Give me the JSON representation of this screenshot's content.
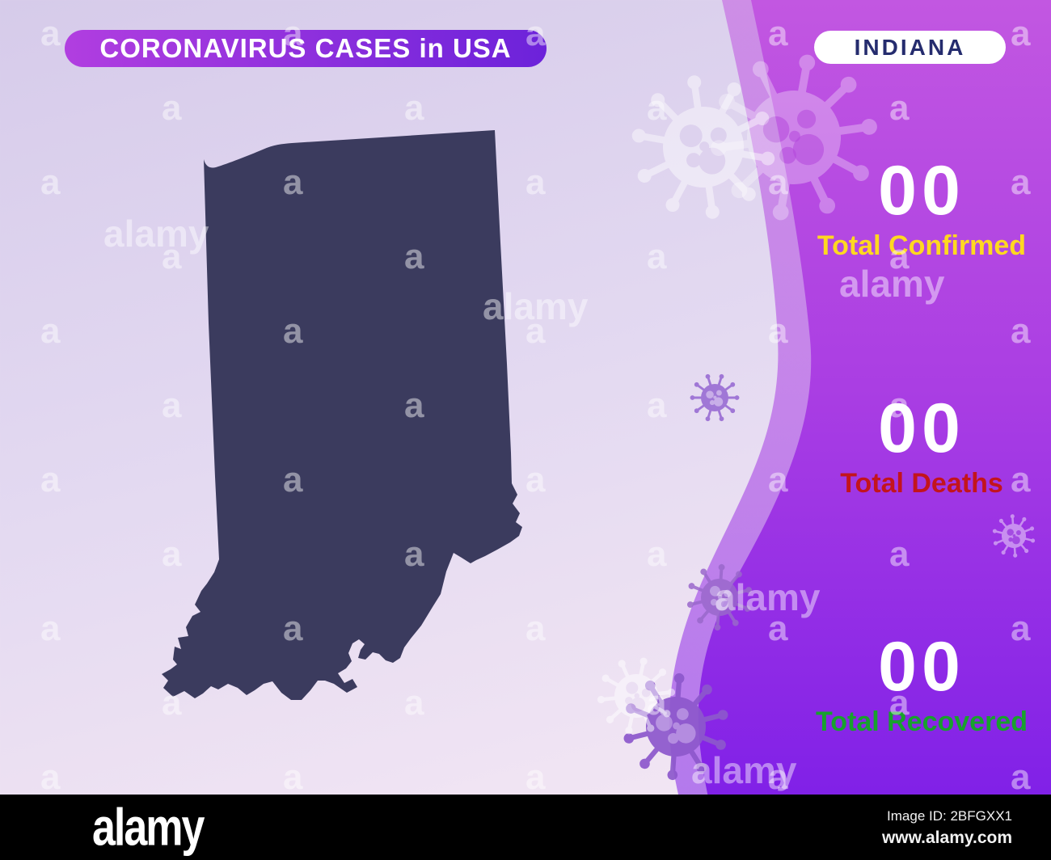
{
  "title_badge": {
    "label": "CORONAVIRUS CASES in USA"
  },
  "state_badge": {
    "label": "INDIANA"
  },
  "stats": [
    {
      "value": "00",
      "label": "Total Confirmed",
      "color": "#ffd820"
    },
    {
      "value": "00",
      "label": "Total Deaths",
      "color": "#c3141d"
    },
    {
      "value": "00",
      "label": "Total Recovered",
      "color": "#18a12d"
    }
  ],
  "map": {
    "state": "Indiana",
    "fill": "#3b3b5e"
  },
  "decor": {
    "virus_icon": "coronavirus-icon"
  },
  "colors": {
    "bg_top": "#d6cbea",
    "bg_bottom": "#f6eaf4",
    "wave_top": "#c257e1",
    "wave_mid": "#aa3ee3",
    "wave_bottom": "#7a1ce8",
    "badge_grad_left": "#b13ee0",
    "badge_grad_right": "#6c22da",
    "state_text": "#252c6e"
  },
  "watermark": {
    "letter": "a",
    "word": "alamy"
  },
  "footer": {
    "logo": "alamy",
    "image_id": "Image ID: 2BFGXX1",
    "site": "www.alamy.com"
  }
}
